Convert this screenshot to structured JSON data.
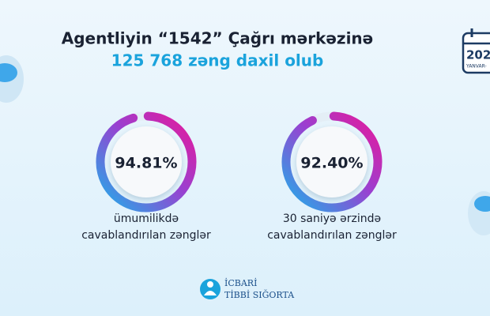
{
  "header": {
    "title": "Agentliyin “1542” Çağrı mərkəzinə",
    "subtitle": "125 768 zəng daxil olub"
  },
  "calendar": {
    "year": "202",
    "period": "YANVAR-"
  },
  "gauges": [
    {
      "value": 94.81,
      "value_label": "94.81%",
      "caption": [
        "ümumilikdə",
        "cavablandırılan zənglər"
      ]
    },
    {
      "value": 92.4,
      "value_label": "92.40%",
      "caption": [
        "30 saniyə ərzində",
        "cavablandırılan zənglər"
      ]
    }
  ],
  "logo": {
    "lines": [
      "İCBARİ",
      "TİBBİ SIĞORTA"
    ]
  }
}
